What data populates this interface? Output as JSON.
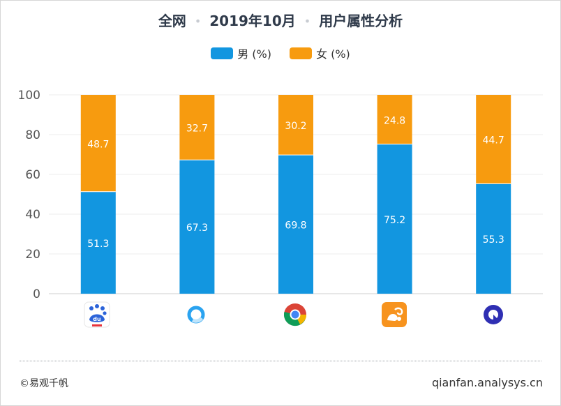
{
  "header": {
    "title_parts": [
      "全网",
      "2019年10月",
      "用户属性分析"
    ],
    "separator": "•"
  },
  "legend": [
    {
      "label": "男 (%)",
      "color": "#1296e0"
    },
    {
      "label": "女 (%)",
      "color": "#f79b0f"
    }
  ],
  "chart_data": {
    "type": "bar",
    "stacked": true,
    "categories": [
      "baidu-browser",
      "qq-browser",
      "chrome",
      "uc-browser",
      "quark-browser"
    ],
    "series": [
      {
        "name": "男 (%)",
        "values": [
          51.3,
          67.3,
          69.8,
          75.2,
          55.3
        ],
        "color": "#1296e0"
      },
      {
        "name": "女 (%)",
        "values": [
          48.7,
          32.7,
          30.2,
          24.8,
          44.7
        ],
        "color": "#f79b0f"
      }
    ],
    "yticks": [
      "0",
      "20",
      "40",
      "60",
      "80",
      "100"
    ],
    "ylim": [
      0,
      100
    ],
    "grid": true
  },
  "category_icons": [
    "baidu-browser-icon",
    "qq-browser-icon",
    "chrome-icon",
    "uc-browser-icon",
    "quark-browser-icon"
  ],
  "footer": {
    "copyright": "©易观千帆",
    "site": "qianfan.analysys.cn"
  }
}
